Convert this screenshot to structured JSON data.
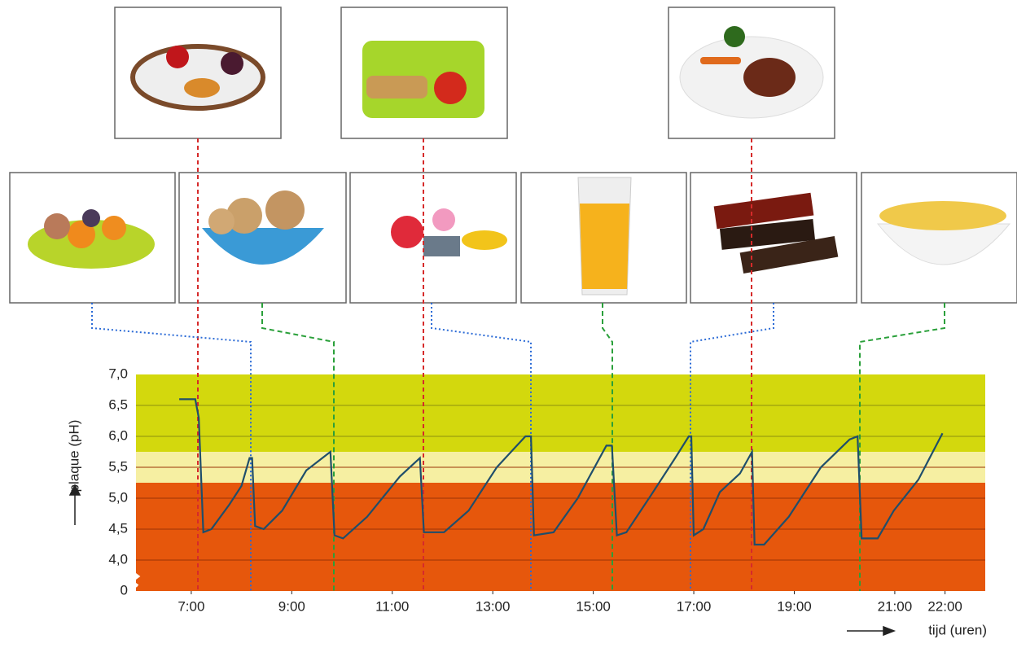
{
  "chart_data": {
    "type": "line",
    "y_label": "plaque (pH)",
    "x_label": "tijd (uren)",
    "x": [
      6.76,
      7.08,
      7.15,
      7.24,
      7.4,
      7.76,
      8.0,
      8.16,
      8.21,
      8.27,
      8.44,
      8.81,
      9.29,
      9.69,
      9.77,
      9.85,
      10.02,
      10.5,
      11.15,
      11.55,
      11.63,
      12.03,
      12.52,
      13.08,
      13.65,
      13.76,
      13.82,
      14.21,
      14.69,
      15.26,
      15.37,
      15.47,
      15.66,
      16.15,
      16.63,
      16.9,
      16.95,
      17.0,
      17.19,
      17.52,
      17.92,
      18.16,
      18.21,
      18.4,
      18.89,
      19.53,
      20.1,
      20.26,
      20.34,
      20.66,
      20.98,
      21.47,
      21.95
    ],
    "values": [
      6.6,
      6.6,
      6.3,
      4.45,
      4.5,
      4.9,
      5.2,
      5.65,
      5.65,
      4.55,
      4.5,
      4.8,
      5.45,
      5.7,
      5.75,
      4.4,
      4.35,
      4.7,
      5.35,
      5.65,
      4.45,
      4.45,
      4.8,
      5.5,
      6.0,
      6.0,
      4.4,
      4.45,
      5.0,
      5.85,
      5.85,
      4.4,
      4.45,
      5.05,
      5.65,
      6.0,
      6.0,
      4.4,
      4.5,
      5.1,
      5.4,
      5.75,
      4.25,
      4.25,
      4.7,
      5.5,
      5.95,
      6.0,
      4.35,
      4.35,
      4.8,
      5.3,
      6.05
    ],
    "color": "#1f4e6b",
    "xlim": [
      5.9,
      22.8
    ],
    "xticks": [
      {
        "value": 7,
        "label": "7:00"
      },
      {
        "value": 9,
        "label": "9:00"
      },
      {
        "value": 11,
        "label": "11:00"
      },
      {
        "value": 13,
        "label": "13:00"
      },
      {
        "value": 15,
        "label": "15:00"
      },
      {
        "value": 17,
        "label": "17:00"
      },
      {
        "value": 19,
        "label": "19:00"
      },
      {
        "value": 21,
        "label": "21:00"
      },
      {
        "value": 22,
        "label": "22:00"
      }
    ],
    "ylim": [
      0,
      7
    ],
    "axis_break": [
      0,
      3.5
    ],
    "yticks": [
      0,
      {
        "value": 4,
        "label": "4,0"
      },
      {
        "value": 4.5,
        "label": "4,5"
      },
      {
        "value": 5,
        "label": "5,0"
      },
      {
        "value": 5.5,
        "label": "5,5"
      },
      {
        "value": 6,
        "label": "6,0"
      },
      {
        "value": 6.5,
        "label": "6,5"
      },
      {
        "value": 7,
        "label": "7,0"
      }
    ],
    "grid": true,
    "bands": [
      {
        "from": 5.75,
        "to": 7,
        "color": "#d3d80d"
      },
      {
        "from": 5.25,
        "to": 5.75,
        "color": "#f6efa2"
      },
      {
        "from": 3.5,
        "to": 5.25,
        "color": "#e6570c"
      }
    ]
  }
}
